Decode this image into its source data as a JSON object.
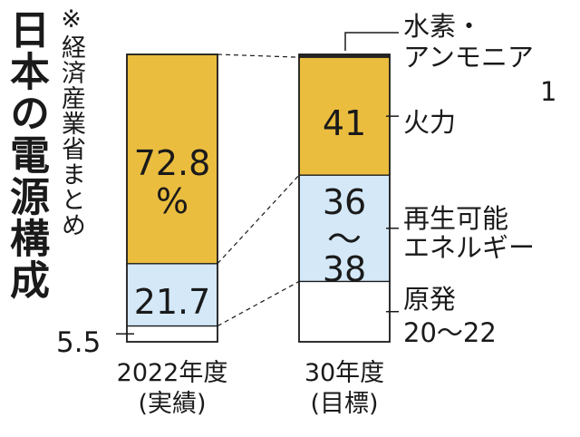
{
  "title": "日本の電源構成",
  "source_note": "※経済産業省まとめ",
  "colors": {
    "thermal": "#ebbd3f",
    "renewable": "#d4e8f8",
    "nuclear": "#ffffff",
    "hydrogen": "#2a2a2a",
    "outline": "#1a1a1a",
    "connector": "#1a1a1a"
  },
  "chart_data": {
    "type": "bar",
    "stacked": true,
    "title": "日本の電源構成",
    "categories": [
      "2022年度\n(実績)",
      "30年度\n(目標)"
    ],
    "series": [
      {
        "name": "原発",
        "values": [
          5.5,
          21
        ],
        "value_labels": [
          "5.5",
          "20〜22"
        ]
      },
      {
        "name": "再生可能エネルギー",
        "values": [
          21.7,
          37
        ],
        "value_labels": [
          "21.7",
          "36〜38"
        ]
      },
      {
        "name": "火力",
        "values": [
          72.8,
          41
        ],
        "value_labels": [
          "72.8\n%",
          "41"
        ]
      },
      {
        "name": "水素・アンモニア",
        "values": [
          0,
          1
        ],
        "value_labels": [
          "",
          "1"
        ]
      }
    ],
    "ylim": [
      0,
      100
    ]
  },
  "labels": {
    "bar1_nuclear": "5.5",
    "bar1_renewable": "21.7",
    "bar1_thermal_value": "72.8",
    "bar1_thermal_unit": "%",
    "bar2_thermal": "41",
    "bar2_renewable_top": "36",
    "bar2_renewable_tilde": "〜",
    "bar2_renewable_bottom": "38",
    "hydrogen_line1": "水素・",
    "hydrogen_line2": "アンモニア",
    "hydrogen_value": "1",
    "thermal_name": "火力",
    "renewable_line1": "再生可能",
    "renewable_line2": "エネルギー",
    "nuclear_name": "原発",
    "nuclear_value": "20〜22",
    "bar1_category_line1": "2022年度",
    "bar1_category_line2": "(実績)",
    "bar2_category_line1": "30年度",
    "bar2_category_line2": "(目標)"
  }
}
